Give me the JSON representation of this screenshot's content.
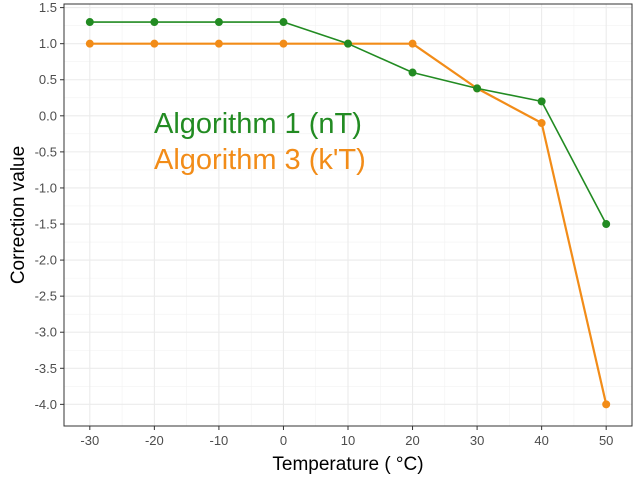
{
  "chart_data": {
    "type": "line",
    "title": "",
    "xlabel": "Temperature ( °C)",
    "ylabel": "Correction value",
    "x": [
      -30,
      -20,
      -10,
      0,
      10,
      20,
      30,
      40,
      50
    ],
    "xlim": [
      -34,
      54
    ],
    "ylim": [
      -4.3,
      1.55
    ],
    "x_ticks": [
      -30,
      -20,
      -10,
      0,
      10,
      20,
      30,
      40,
      50
    ],
    "x_tick_labels": [
      "-30",
      "-20",
      "-10",
      "0",
      "10",
      "20",
      "30",
      "40",
      "50"
    ],
    "y_ticks": [
      1.5,
      1.0,
      0.5,
      0.0,
      -0.5,
      -1.0,
      -1.5,
      -2.0,
      -2.5,
      -3.0,
      -3.5,
      -4.0
    ],
    "y_tick_labels": [
      "1.5",
      "1.0",
      "0.5",
      "0.0",
      "-0.5",
      "-1.0",
      "-1.5",
      "-2.0",
      "-2.5",
      "-3.0",
      "-3.5",
      "-4.0"
    ],
    "grid": true,
    "legend": "none",
    "series": [
      {
        "name": "Algorithm 1 (nT)",
        "color": "#228B22",
        "values": [
          1.3,
          1.3,
          1.3,
          1.3,
          1.0,
          0.6,
          0.38,
          0.2,
          -1.5
        ]
      },
      {
        "name": "Algorithm 3 (k'T)",
        "color": "#F28C18",
        "values": [
          1.0,
          1.0,
          1.0,
          1.0,
          1.0,
          1.0,
          0.38,
          -0.1,
          -4.0
        ]
      }
    ],
    "annotations": [
      {
        "text": "Algorithm 1 (nT)",
        "color": "#228B22"
      },
      {
        "text": "Algorithm 3 (k'T)",
        "color": "#F28C18"
      }
    ]
  }
}
